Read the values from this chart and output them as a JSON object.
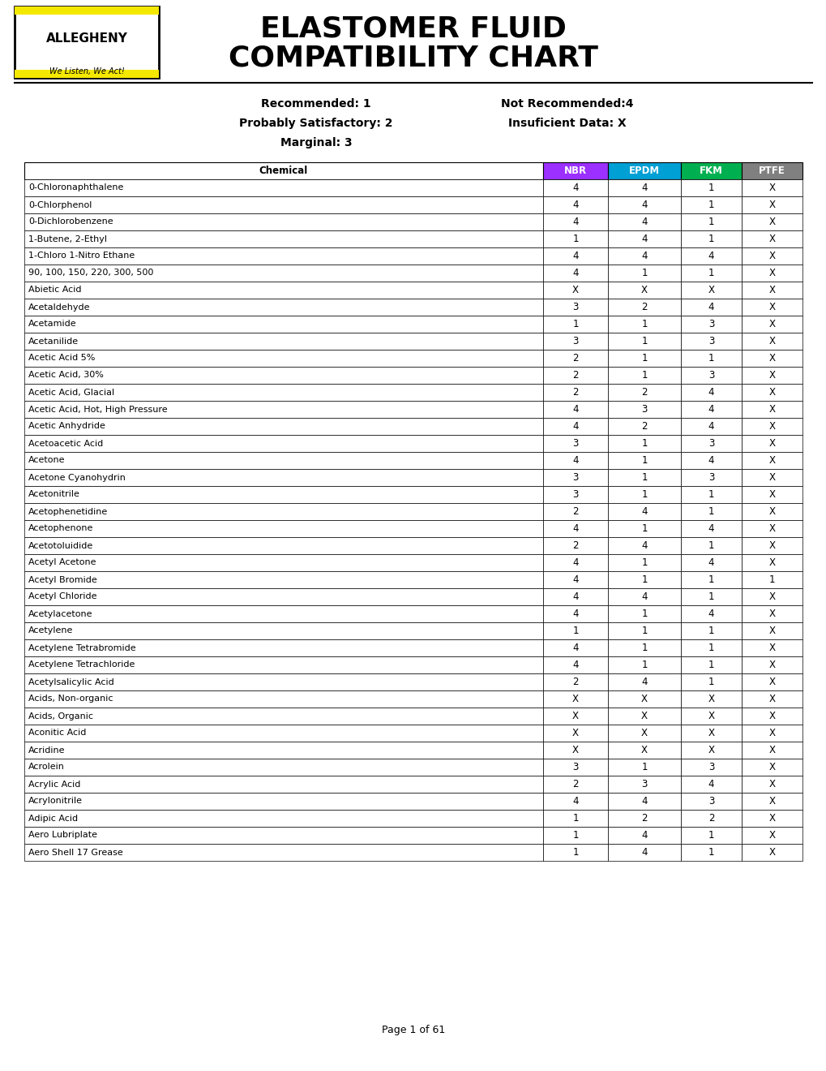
{
  "title_line1": "ELASTOMER FLUID",
  "title_line2": "COMPATIBILITY CHART",
  "legend_left": [
    "Recommended: 1",
    "Probably Satisfactory: 2",
    "Marginal: 3"
  ],
  "legend_right": [
    "Not Recommended:4",
    "Insuficient Data: X"
  ],
  "col_headers": [
    "Chemical",
    "NBR",
    "EPDM",
    "FKM",
    "PTFE"
  ],
  "col_header_colors": [
    "#ffffff",
    "#9b30ff",
    "#009fd4",
    "#00b050",
    "#808080"
  ],
  "col_header_text_colors": [
    "#000000",
    "#ffffff",
    "#ffffff",
    "#ffffff",
    "#ffffff"
  ],
  "rows": [
    [
      "0-Chloronaphthalene",
      "4",
      "4",
      "1",
      "X"
    ],
    [
      "0-Chlorphenol",
      "4",
      "4",
      "1",
      "X"
    ],
    [
      "0-Dichlorobenzene",
      "4",
      "4",
      "1",
      "X"
    ],
    [
      "1-Butene, 2-Ethyl",
      "1",
      "4",
      "1",
      "X"
    ],
    [
      "1-Chloro 1-Nitro Ethane",
      "4",
      "4",
      "4",
      "X"
    ],
    [
      "90, 100, 150, 220, 300, 500",
      "4",
      "1",
      "1",
      "X"
    ],
    [
      "Abietic Acid",
      "X",
      "X",
      "X",
      "X"
    ],
    [
      "Acetaldehyde",
      "3",
      "2",
      "4",
      "X"
    ],
    [
      "Acetamide",
      "1",
      "1",
      "3",
      "X"
    ],
    [
      "Acetanilide",
      "3",
      "1",
      "3",
      "X"
    ],
    [
      "Acetic Acid 5%",
      "2",
      "1",
      "1",
      "X"
    ],
    [
      "Acetic Acid, 30%",
      "2",
      "1",
      "3",
      "X"
    ],
    [
      "Acetic Acid, Glacial",
      "2",
      "2",
      "4",
      "X"
    ],
    [
      "Acetic Acid, Hot, High Pressure",
      "4",
      "3",
      "4",
      "X"
    ],
    [
      "Acetic Anhydride",
      "4",
      "2",
      "4",
      "X"
    ],
    [
      "Acetoacetic Acid",
      "3",
      "1",
      "3",
      "X"
    ],
    [
      "Acetone",
      "4",
      "1",
      "4",
      "X"
    ],
    [
      "Acetone Cyanohydrin",
      "3",
      "1",
      "3",
      "X"
    ],
    [
      "Acetonitrile",
      "3",
      "1",
      "1",
      "X"
    ],
    [
      "Acetophenetidine",
      "2",
      "4",
      "1",
      "X"
    ],
    [
      "Acetophenone",
      "4",
      "1",
      "4",
      "X"
    ],
    [
      "Acetotoluidide",
      "2",
      "4",
      "1",
      "X"
    ],
    [
      "Acetyl Acetone",
      "4",
      "1",
      "4",
      "X"
    ],
    [
      "Acetyl Bromide",
      "4",
      "1",
      "1",
      "1"
    ],
    [
      "Acetyl Chloride",
      "4",
      "4",
      "1",
      "X"
    ],
    [
      "Acetylacetone",
      "4",
      "1",
      "4",
      "X"
    ],
    [
      "Acetylene",
      "1",
      "1",
      "1",
      "X"
    ],
    [
      "Acetylene Tetrabromide",
      "4",
      "1",
      "1",
      "X"
    ],
    [
      "Acetylene Tetrachloride",
      "4",
      "1",
      "1",
      "X"
    ],
    [
      "Acetylsalicylic Acid",
      "2",
      "4",
      "1",
      "X"
    ],
    [
      "Acids, Non-organic",
      "X",
      "X",
      "X",
      "X"
    ],
    [
      "Acids, Organic",
      "X",
      "X",
      "X",
      "X"
    ],
    [
      "Aconitic Acid",
      "X",
      "X",
      "X",
      "X"
    ],
    [
      "Acridine",
      "X",
      "X",
      "X",
      "X"
    ],
    [
      "Acrolein",
      "3",
      "1",
      "3",
      "X"
    ],
    [
      "Acrylic Acid",
      "2",
      "3",
      "4",
      "X"
    ],
    [
      "Acrylonitrile",
      "4",
      "4",
      "3",
      "X"
    ],
    [
      "Adipic Acid",
      "1",
      "2",
      "2",
      "X"
    ],
    [
      "Aero Lubriplate",
      "1",
      "4",
      "1",
      "X"
    ],
    [
      "Aero Shell 17 Grease",
      "1",
      "4",
      "1",
      "X"
    ]
  ],
  "footer": "Page 1 of 61",
  "bg_color": "#ffffff"
}
